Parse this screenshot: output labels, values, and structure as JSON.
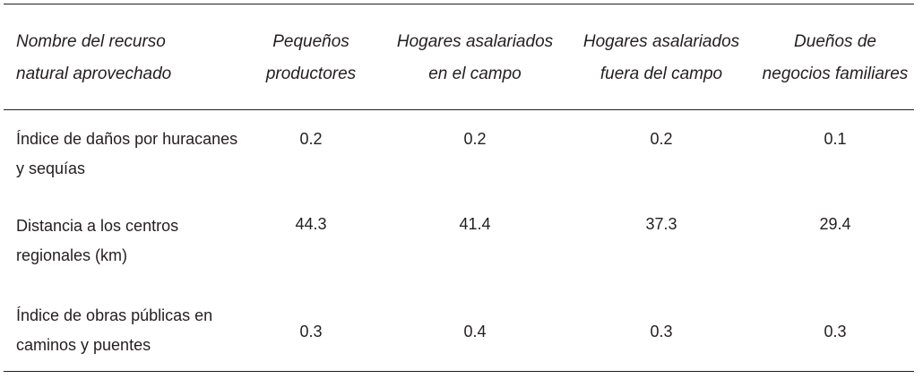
{
  "table": {
    "header": [
      [
        "Nombre del recurso",
        "natural aprovechado"
      ],
      [
        "Pequeños",
        "productores"
      ],
      [
        "Hogares asalariados",
        "en el campo"
      ],
      [
        "Hogares asalariados",
        "fuera del campo"
      ],
      [
        "Dueños de",
        "negocios familiares"
      ]
    ],
    "rows": [
      {
        "label": [
          "Índice de daños por huracanes",
          "y sequías"
        ],
        "values": [
          0.2,
          0.2,
          0.2,
          0.1
        ]
      },
      {
        "label": [
          "Distancia a los centros",
          "regionales (km)"
        ],
        "values": [
          44.3,
          41.4,
          37.3,
          29.4
        ]
      },
      {
        "label": [
          "Índice de obras públicas en",
          "caminos y puentes"
        ],
        "values": [
          0.3,
          0.4,
          0.3,
          0.3
        ]
      }
    ]
  }
}
